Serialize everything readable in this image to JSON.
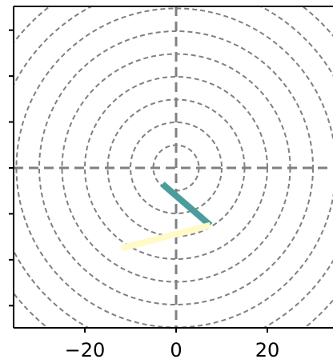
{
  "chart_data": {
    "type": "line",
    "title": "",
    "xlabel": "",
    "ylabel": "",
    "xlim": [
      -35,
      35
    ],
    "ylim": [
      -35,
      35
    ],
    "aspect": "equal",
    "xticks": [
      -20,
      0,
      20
    ],
    "xtick_labels": [
      "−20",
      "0",
      "20"
    ],
    "yticks": [
      -30,
      -20,
      -10,
      0,
      10,
      20,
      30
    ],
    "ytick_labels": [],
    "grid": false,
    "legend": "none",
    "reference_lines": {
      "axis_lines": [
        {
          "orientation": "vertical",
          "at": 0
        },
        {
          "orientation": "horizontal",
          "at": 0
        }
      ],
      "circles_radii": [
        5,
        10,
        15,
        20,
        25,
        30,
        35,
        40,
        45
      ],
      "style": "dashed",
      "color": "#808080"
    },
    "series": [
      {
        "color": "#4a9d9a",
        "x": [
          -3,
          7.5
        ],
        "y": [
          -3.5,
          -12.5
        ]
      },
      {
        "color": "#fffac8",
        "x": [
          7.5,
          -12
        ],
        "y": [
          -12.5,
          -17.5
        ]
      }
    ]
  }
}
